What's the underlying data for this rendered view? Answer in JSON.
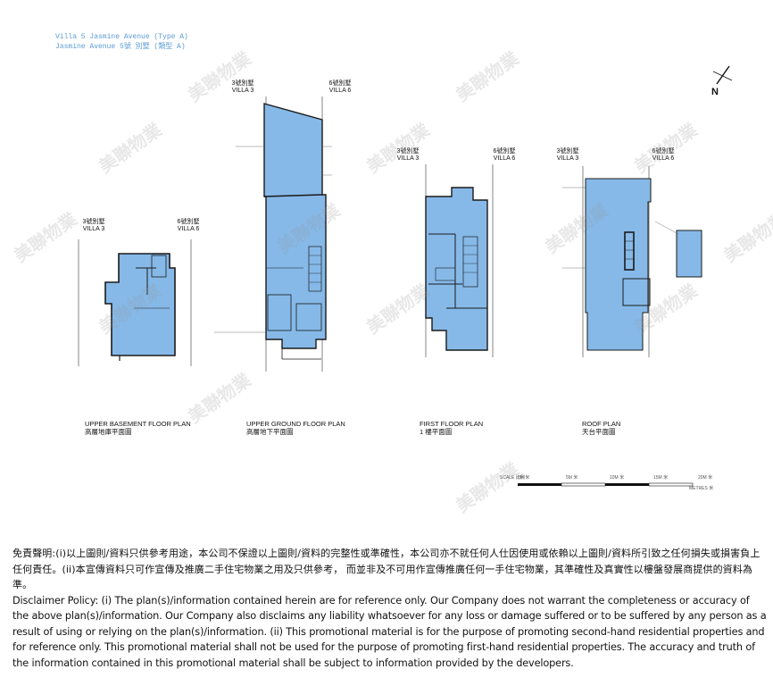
{
  "header": {
    "title_line1": "Villa 5 Jasmine Avenue (Type A)",
    "title_line2": "Jasmine Avenue 5號 別墅 (類型 A)"
  },
  "villa_tags": {
    "villa3_zh": "3號別墅",
    "villa3_en": "VILLA 3",
    "villa6_zh": "6號別墅",
    "villa6_en": "VILLA 6"
  },
  "plans": [
    {
      "label_en": "UPPER BASEMENT FLOOR PLAN",
      "label_zh": "高層地庫平面圖"
    },
    {
      "label_en": "UPPER GROUND FLOOR PLAN",
      "label_zh": "高層地下平面圖"
    },
    {
      "label_en": "FIRST FLOOR PLAN",
      "label_zh": "1 樓平面圖"
    },
    {
      "label_en": "ROOF PLAN",
      "label_zh": "天台平面圖"
    }
  ],
  "north_label": "N",
  "scale": {
    "label": "SCALE 比例",
    "marks": [
      "0M 米",
      "5M 米",
      "10M 米",
      "15M 米",
      "20M 米"
    ],
    "unit": "METRES 米"
  },
  "watermark": "美聯物業",
  "disclaimer": {
    "zh": "免責聲明:(i)以上圖則/資料只供參考用途，本公司不保證以上圖則/資料的完整性或準確性，本公司亦不就任何人仕因使用或依賴以上圖則/資料所引致之任何損失或損害負上任何責任。(ii)本宣傳資料只可作宣傳及推廣二手住宅物業之用及只供參考， 而並非及不可用作宣傳推廣任何一手住宅物業，其準確性及真實性以樓盤發展商提供的資料為準。",
    "en": "Disclaimer Policy: (i) The plan(s)/information contained herein are for reference only. Our Company does not warrant the completeness or accuracy of the above plan(s)/information. Our Company also disclaims any liability whatsoever for any loss or damage suffered or to be suffered by any person as a result of using or relying on the plan(s)/information. (ii) This promotional material is for the purpose of promoting second-hand residential properties and for reference only. This promotional material shall not be used for the purpose of promoting first-hand residential properties. The accuracy and truth of the information contained in this promotional material shall be subject to information provided by the developers."
  },
  "colors": {
    "floor_fill": "#86b9e8",
    "floor_stroke": "#1a1a1a",
    "title_blue": "#5b9bd5"
  }
}
